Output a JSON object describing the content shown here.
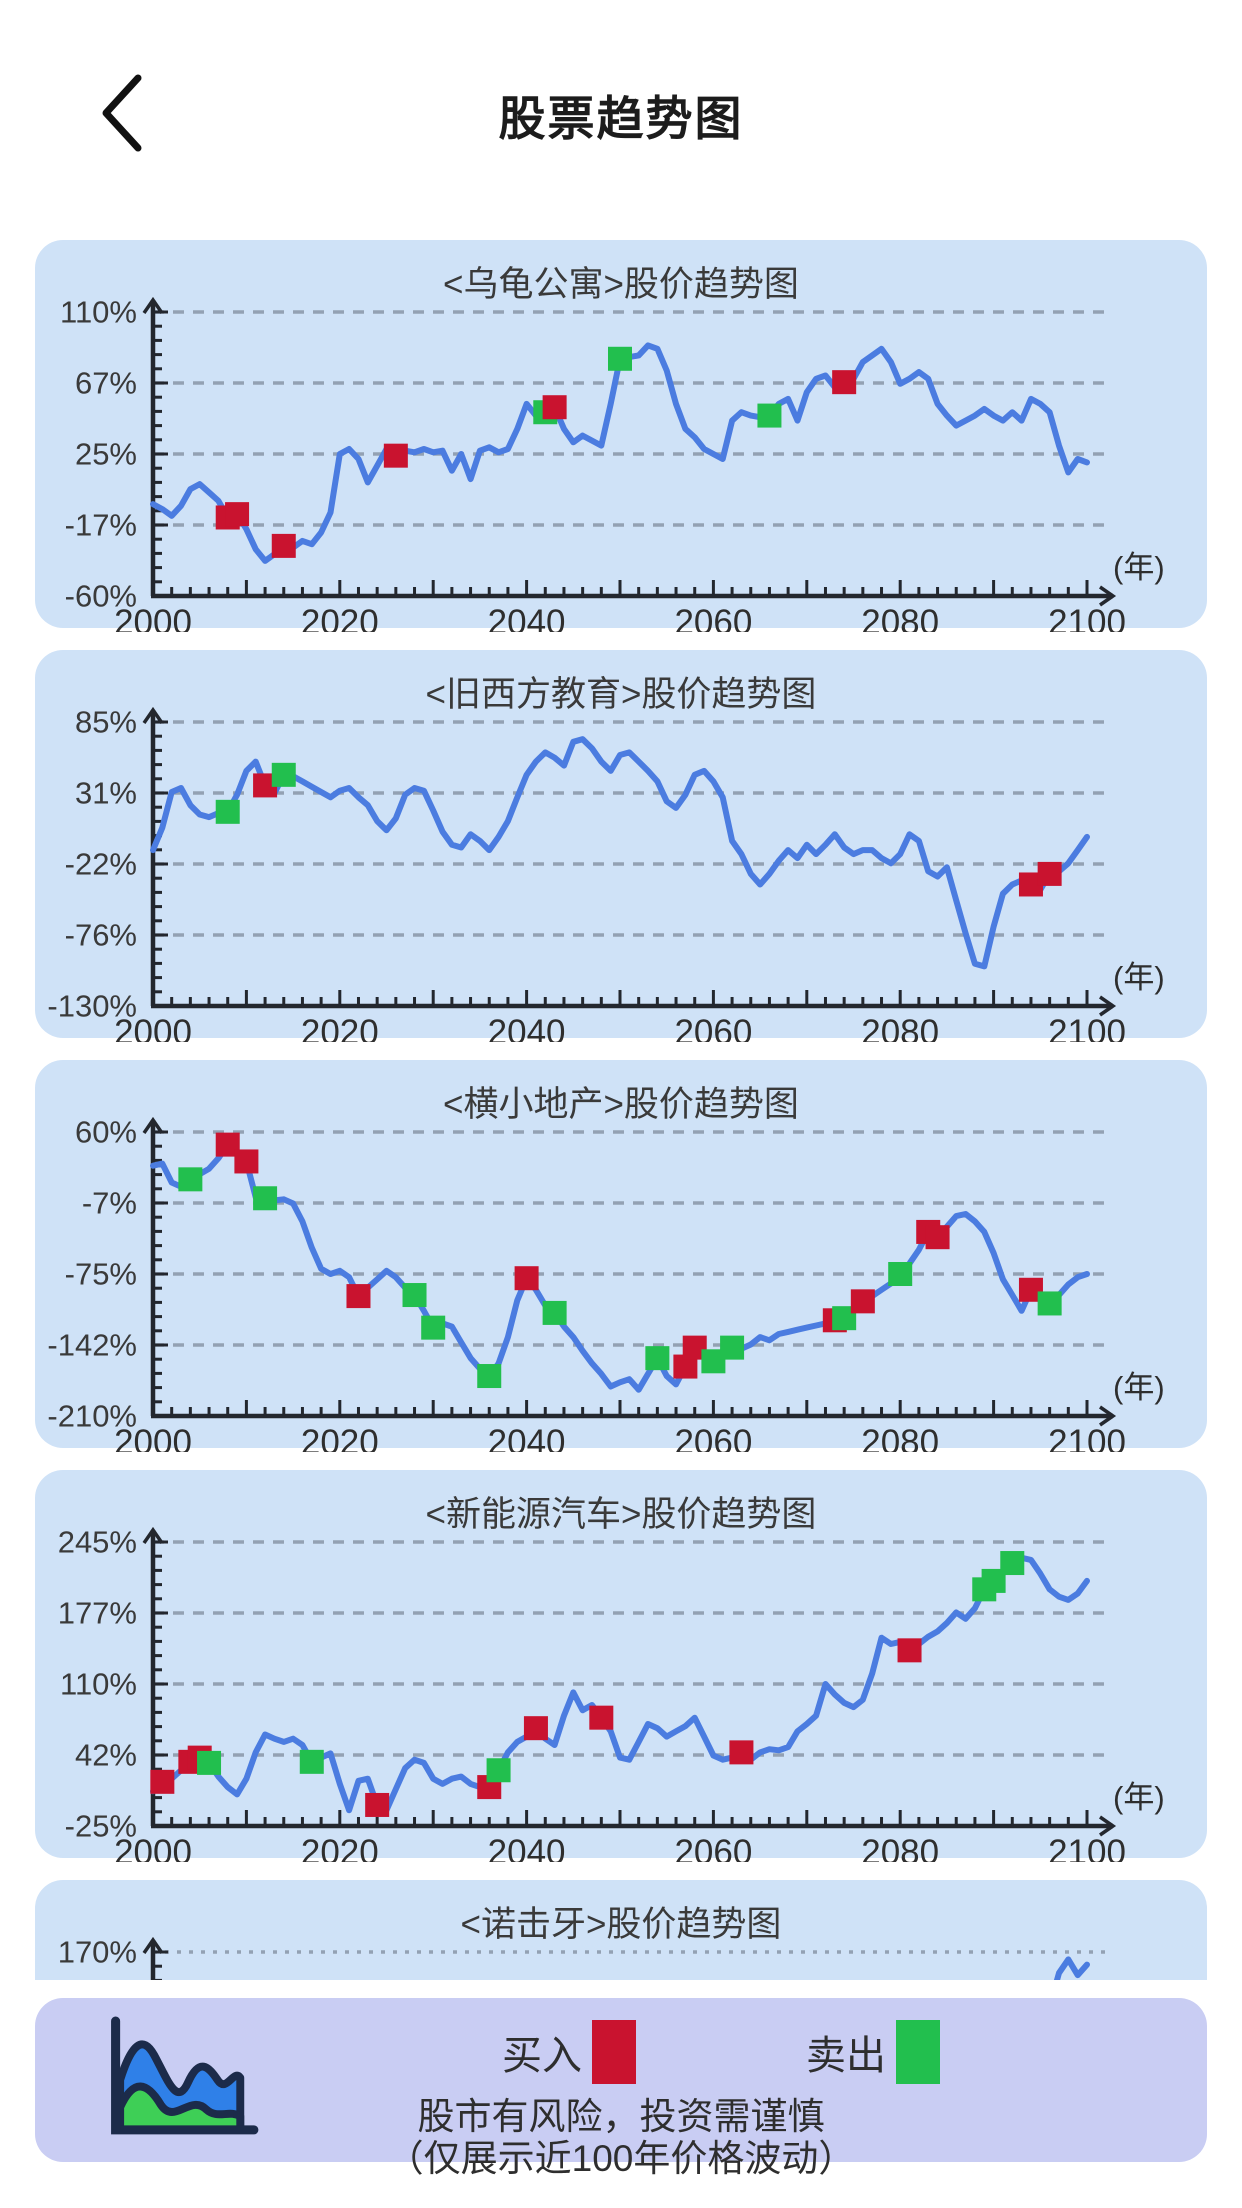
{
  "header": {
    "title": "股票趋势图",
    "back_icon": "chevron-left"
  },
  "x_axis": {
    "labels": [
      "2000",
      "2020",
      "2040",
      "2060",
      "2080",
      "2100"
    ],
    "unit": "(年)",
    "start": 2000,
    "end": 2100
  },
  "legend": {
    "buy_label": "买入",
    "sell_label": "卖出",
    "icon": "area-chart-icon",
    "disclaimer_line1": "股市有风险，投资需谨慎",
    "disclaimer_line2": "（仅展示近100年价格波动）"
  },
  "colors": {
    "card_bg": "#cfe2f7",
    "legend_bg": "#c9cdf3",
    "line": "#4b7ce0",
    "buy": "#c9132f",
    "sell": "#22bf4e",
    "grid": "#93a1b3",
    "axis": "#23272e",
    "text": "#3a3a3a"
  },
  "chart_data": [
    {
      "type": "line",
      "title": "<乌龟公寓>股价趋势图",
      "ylabel": "%",
      "yticks": [
        110,
        67,
        25,
        -17,
        -60
      ],
      "ytick_labels": [
        "110%",
        "67%",
        "25%",
        "-17%",
        "-60%"
      ],
      "x_start": 2000,
      "series": [
        -5,
        -8,
        -12,
        -6,
        4,
        7,
        2,
        -3,
        -13,
        -11,
        -20,
        -32,
        -39,
        -35,
        -30,
        -31,
        -27,
        -29,
        -22,
        -10,
        25,
        28,
        22,
        8,
        18,
        28,
        24,
        27,
        26,
        28,
        26,
        27,
        15,
        25,
        10,
        27,
        29,
        26,
        28,
        40,
        55,
        48,
        50,
        53,
        40,
        32,
        36,
        33,
        30,
        55,
        82,
        83,
        84,
        90,
        88,
        75,
        55,
        40,
        35,
        28,
        25,
        22,
        45,
        50,
        48,
        47,
        48,
        55,
        58,
        45,
        62,
        70,
        72,
        65,
        68,
        70,
        80,
        84,
        88,
        80,
        67,
        70,
        74,
        70,
        55,
        48,
        42,
        45,
        48,
        52,
        48,
        45,
        50,
        45,
        58,
        55,
        50,
        30,
        14,
        22,
        20
      ],
      "markers": [
        [
          2008,
          "buy"
        ],
        [
          2009,
          "buy"
        ],
        [
          2014,
          "buy"
        ],
        [
          2026,
          "buy"
        ],
        [
          2042,
          "sell"
        ],
        [
          2043,
          "buy"
        ],
        [
          2050,
          "sell"
        ],
        [
          2066,
          "sell"
        ],
        [
          2074,
          "buy"
        ]
      ]
    },
    {
      "type": "line",
      "title": "<旧西方教育>股价趋势图",
      "ylabel": "%",
      "yticks": [
        85,
        31,
        -22,
        -76,
        -130
      ],
      "ytick_labels": [
        "85%",
        "31%",
        "-22%",
        "-76%",
        "-130%"
      ],
      "x_start": 2000,
      "series": [
        -12,
        5,
        32,
        35,
        22,
        15,
        13,
        16,
        17,
        30,
        48,
        55,
        37,
        31,
        45,
        44,
        40,
        36,
        32,
        28,
        33,
        35,
        28,
        22,
        10,
        3,
        12,
        30,
        35,
        33,
        18,
        2,
        -8,
        -10,
        0,
        -5,
        -12,
        -2,
        10,
        28,
        45,
        55,
        62,
        58,
        52,
        70,
        72,
        65,
        55,
        48,
        60,
        62,
        55,
        48,
        40,
        25,
        20,
        30,
        45,
        48,
        40,
        28,
        -5,
        -15,
        -30,
        -38,
        -30,
        -20,
        -12,
        -18,
        -8,
        -15,
        -8,
        0,
        -10,
        -15,
        -12,
        -12,
        -18,
        -22,
        -15,
        0,
        -5,
        -28,
        -32,
        -25,
        -50,
        -75,
        -98,
        -100,
        -70,
        -45,
        -38,
        -35,
        -38,
        -42,
        -30,
        -28,
        -22,
        -12,
        -2
      ],
      "markers": [
        [
          2008,
          "sell"
        ],
        [
          2012,
          "buy"
        ],
        [
          2014,
          "sell"
        ],
        [
          2094,
          "buy"
        ],
        [
          2096,
          "buy"
        ]
      ]
    },
    {
      "type": "line",
      "title": "<横小地产>股价趋势图",
      "ylabel": "%",
      "yticks": [
        60,
        -7,
        -75,
        -142,
        -210
      ],
      "ytick_labels": [
        "60%",
        "-7%",
        "-75%",
        "-142%",
        "-210%"
      ],
      "x_start": 2000,
      "series": [
        28,
        30,
        12,
        8,
        15,
        20,
        25,
        35,
        48,
        40,
        32,
        -2,
        -3,
        -5,
        -4,
        -8,
        -25,
        -50,
        -70,
        -75,
        -72,
        -78,
        -96,
        -88,
        -80,
        -72,
        -78,
        -88,
        -95,
        -110,
        -126,
        -122,
        -125,
        -140,
        -155,
        -165,
        -172,
        -160,
        -135,
        -100,
        -79,
        -90,
        -105,
        -112,
        -125,
        -135,
        -148,
        -160,
        -170,
        -182,
        -178,
        -175,
        -185,
        -170,
        -155,
        -172,
        -180,
        -163,
        -145,
        -152,
        -158,
        -148,
        -145,
        -146,
        -142,
        -135,
        -138,
        -132,
        -130,
        -128,
        -126,
        -124,
        -122,
        -119,
        -117,
        -110,
        -101,
        -96,
        -90,
        -84,
        -75,
        -65,
        -52,
        -35,
        -40,
        -30,
        -20,
        -18,
        -25,
        -35,
        -55,
        -80,
        -95,
        -110,
        -90,
        -100,
        -103,
        -95,
        -85,
        -78,
        -75
      ],
      "markers": [
        [
          2004,
          "sell"
        ],
        [
          2008,
          "buy"
        ],
        [
          2010,
          "buy"
        ],
        [
          2012,
          "sell"
        ],
        [
          2022,
          "buy"
        ],
        [
          2028,
          "sell"
        ],
        [
          2030,
          "sell"
        ],
        [
          2036,
          "sell"
        ],
        [
          2040,
          "buy"
        ],
        [
          2043,
          "sell"
        ],
        [
          2054,
          "sell"
        ],
        [
          2057,
          "buy"
        ],
        [
          2058,
          "buy"
        ],
        [
          2060,
          "sell"
        ],
        [
          2062,
          "sell"
        ],
        [
          2073,
          "buy"
        ],
        [
          2074,
          "sell"
        ],
        [
          2076,
          "buy"
        ],
        [
          2080,
          "sell"
        ],
        [
          2083,
          "buy"
        ],
        [
          2084,
          "buy"
        ],
        [
          2094,
          "buy"
        ],
        [
          2096,
          "sell"
        ]
      ]
    },
    {
      "type": "line",
      "title": "<新能源汽车>股价趋势图",
      "ylabel": "%",
      "yticks": [
        245,
        177,
        110,
        42,
        -25
      ],
      "ytick_labels": [
        "245%",
        "177%",
        "110%",
        "42%",
        "-25%"
      ],
      "x_start": 2000,
      "series": [
        8,
        17,
        20,
        28,
        36,
        40,
        35,
        22,
        12,
        5,
        20,
        45,
        62,
        58,
        55,
        58,
        52,
        36,
        40,
        44,
        15,
        -10,
        18,
        20,
        -5,
        -10,
        10,
        30,
        38,
        35,
        20,
        15,
        20,
        22,
        15,
        12,
        12,
        28,
        45,
        55,
        60,
        68,
        58,
        52,
        80,
        102,
        85,
        90,
        78,
        65,
        40,
        38,
        55,
        72,
        68,
        60,
        65,
        70,
        78,
        60,
        42,
        38,
        40,
        45,
        38,
        45,
        48,
        47,
        50,
        65,
        72,
        80,
        110,
        100,
        92,
        88,
        95,
        120,
        154,
        148,
        150,
        142,
        148,
        155,
        160,
        168,
        178,
        172,
        182,
        200,
        208,
        215,
        225,
        230,
        228,
        215,
        200,
        193,
        190,
        196,
        208
      ],
      "markers": [
        [
          2001,
          "buy"
        ],
        [
          2004,
          "buy"
        ],
        [
          2005,
          "buy"
        ],
        [
          2006,
          "sell"
        ],
        [
          2017,
          "sell"
        ],
        [
          2024,
          "buy"
        ],
        [
          2036,
          "buy"
        ],
        [
          2037,
          "sell"
        ],
        [
          2041,
          "buy"
        ],
        [
          2048,
          "buy"
        ],
        [
          2063,
          "buy"
        ],
        [
          2081,
          "buy"
        ],
        [
          2089,
          "sell"
        ],
        [
          2090,
          "sell"
        ],
        [
          2092,
          "sell"
        ]
      ]
    },
    {
      "type": "line",
      "title": "<诺击牙>股价趋势图",
      "ylabel": "%",
      "yticks": [
        170
      ],
      "ytick_labels": [
        "170%"
      ],
      "y_bottom": -100,
      "dotted_grid": true,
      "clipped": true,
      "x_start": 2095,
      "series": [
        95,
        118,
        150,
        163,
        148,
        158
      ],
      "markers": []
    }
  ]
}
